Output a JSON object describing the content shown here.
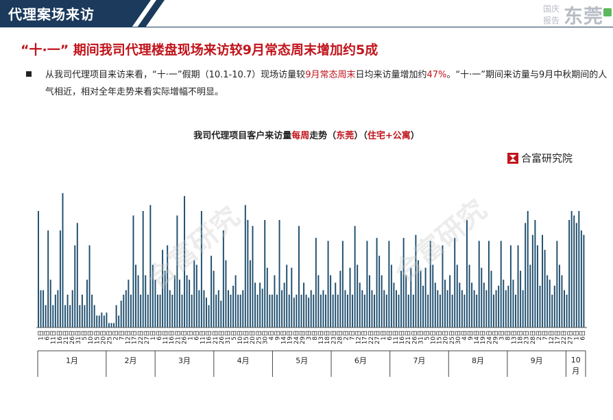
{
  "header": {
    "section_title": "代理案场来访",
    "brand_line1": "国庆",
    "brand_line2": "报告",
    "brand_city": "东莞"
  },
  "headline": "“十·一” 期间我司代理楼盘现场来访较9月常态周末增加约5成",
  "paragraph": {
    "part1": "从我司代理项目来访来看，“十·一”假期（10.1-10.7）现场访量较",
    "part2_red": "9月常态周末",
    "part3": "日均来访量增加约",
    "part4_red": "47%",
    "part5": "。“十·一”期间来访量与9月中秋期间的人气相近，相对全年走势来看实际增幅不明显。"
  },
  "chart_title": {
    "part1": "我司代理项目客户来访量",
    "part2_red": "每周",
    "part3": "走势（",
    "part4_red": "东莞",
    "part5": "）（",
    "part6_red": "住宅+公寓",
    "part7": "）"
  },
  "logo_text": "合富研究院",
  "watermark": "合富研究",
  "colors": {
    "bar": "#1e4e6e",
    "accent_red": "#c0141b",
    "header_navy": "#1b3a5c"
  },
  "chart_data": {
    "type": "bar",
    "values": [
      78,
      25,
      25,
      15,
      65,
      32,
      15,
      22,
      25,
      65,
      90,
      15,
      22,
      15,
      25,
      55,
      70,
      15,
      22,
      15,
      32,
      55,
      22,
      15,
      8,
      8,
      10,
      8,
      10,
      3,
      3,
      3,
      15,
      8,
      18,
      22,
      25,
      32,
      22,
      75,
      42,
      35,
      22,
      78,
      35,
      22,
      82,
      42,
      32,
      22,
      22,
      52,
      38,
      55,
      25,
      22,
      35,
      75,
      32,
      22,
      88,
      35,
      32,
      22,
      45,
      42,
      25,
      78,
      25,
      20,
      15,
      48,
      38,
      22,
      25,
      18,
      65,
      45,
      25,
      22,
      28,
      35,
      22,
      22,
      25,
      82,
      72,
      45,
      68,
      30,
      22,
      30,
      26,
      72,
      40,
      22,
      22,
      35,
      22,
      72,
      25,
      30,
      42,
      22,
      40,
      20,
      22,
      68,
      22,
      30,
      22,
      20,
      25,
      22,
      60,
      35,
      22,
      25,
      22,
      58,
      35,
      22,
      30,
      22,
      38,
      58,
      25,
      22,
      40,
      22,
      68,
      42,
      30,
      25,
      22,
      58,
      35,
      25,
      22,
      60,
      48,
      35,
      25,
      22,
      58,
      42,
      30,
      25,
      22,
      38,
      60,
      35,
      22,
      40,
      22,
      62,
      45,
      38,
      28,
      40,
      22,
      58,
      42,
      30,
      25,
      22,
      55,
      32,
      25,
      35,
      22,
      60,
      42,
      30,
      25,
      22,
      72,
      42,
      30,
      25,
      22,
      58,
      40,
      30,
      25,
      58,
      38,
      22,
      25,
      28,
      58,
      32,
      25,
      28,
      55,
      32,
      22,
      55,
      38,
      25,
      70,
      78,
      42,
      62,
      72,
      55,
      28,
      62,
      52,
      35,
      32,
      22,
      28,
      58,
      42,
      35,
      25,
      22,
      72,
      78,
      75,
      70,
      78,
      65,
      62
    ],
    "week_labels": [
      "1日",
      "6日",
      "11日",
      "16日",
      "21日",
      "26日",
      "31日",
      "5日",
      "10日",
      "15日",
      "20日",
      "25日",
      "2日",
      "7日",
      "12日",
      "17日",
      "22日",
      "27日",
      "1日",
      "6日",
      "11日",
      "16日",
      "21日",
      "26日",
      "1日",
      "6日",
      "11日",
      "16日",
      "21日",
      "26日",
      "31日",
      "5日",
      "10日",
      "15日",
      "20日",
      "25日",
      "30日",
      "4日",
      "9日",
      "14日",
      "19日",
      "24日",
      "29日",
      "3日",
      "8日",
      "13日",
      "18日",
      "23日",
      "28日",
      "2日",
      "7日",
      "12日",
      "17日",
      "22日",
      "27日",
      "1日",
      "6日",
      "11日",
      "16日",
      "21日",
      "26日",
      "31日",
      "5日",
      "10日",
      "15日",
      "20日",
      "25日",
      "30日",
      "4日",
      "9日",
      "14日",
      "19日",
      "24日",
      "29日",
      "3日",
      "8日",
      "13日",
      "18日",
      "23日",
      "28日",
      "2日",
      "7日",
      "12日",
      "17日",
      "22日",
      "27日",
      "1日",
      "6日"
    ],
    "months": [
      "1月",
      "2月",
      "3月",
      "4月",
      "5月",
      "6月",
      "7月",
      "8月",
      "9月",
      "10月"
    ],
    "month_week_counts": [
      7,
      5,
      6,
      6,
      6,
      6,
      6,
      6,
      6,
      2
    ]
  }
}
